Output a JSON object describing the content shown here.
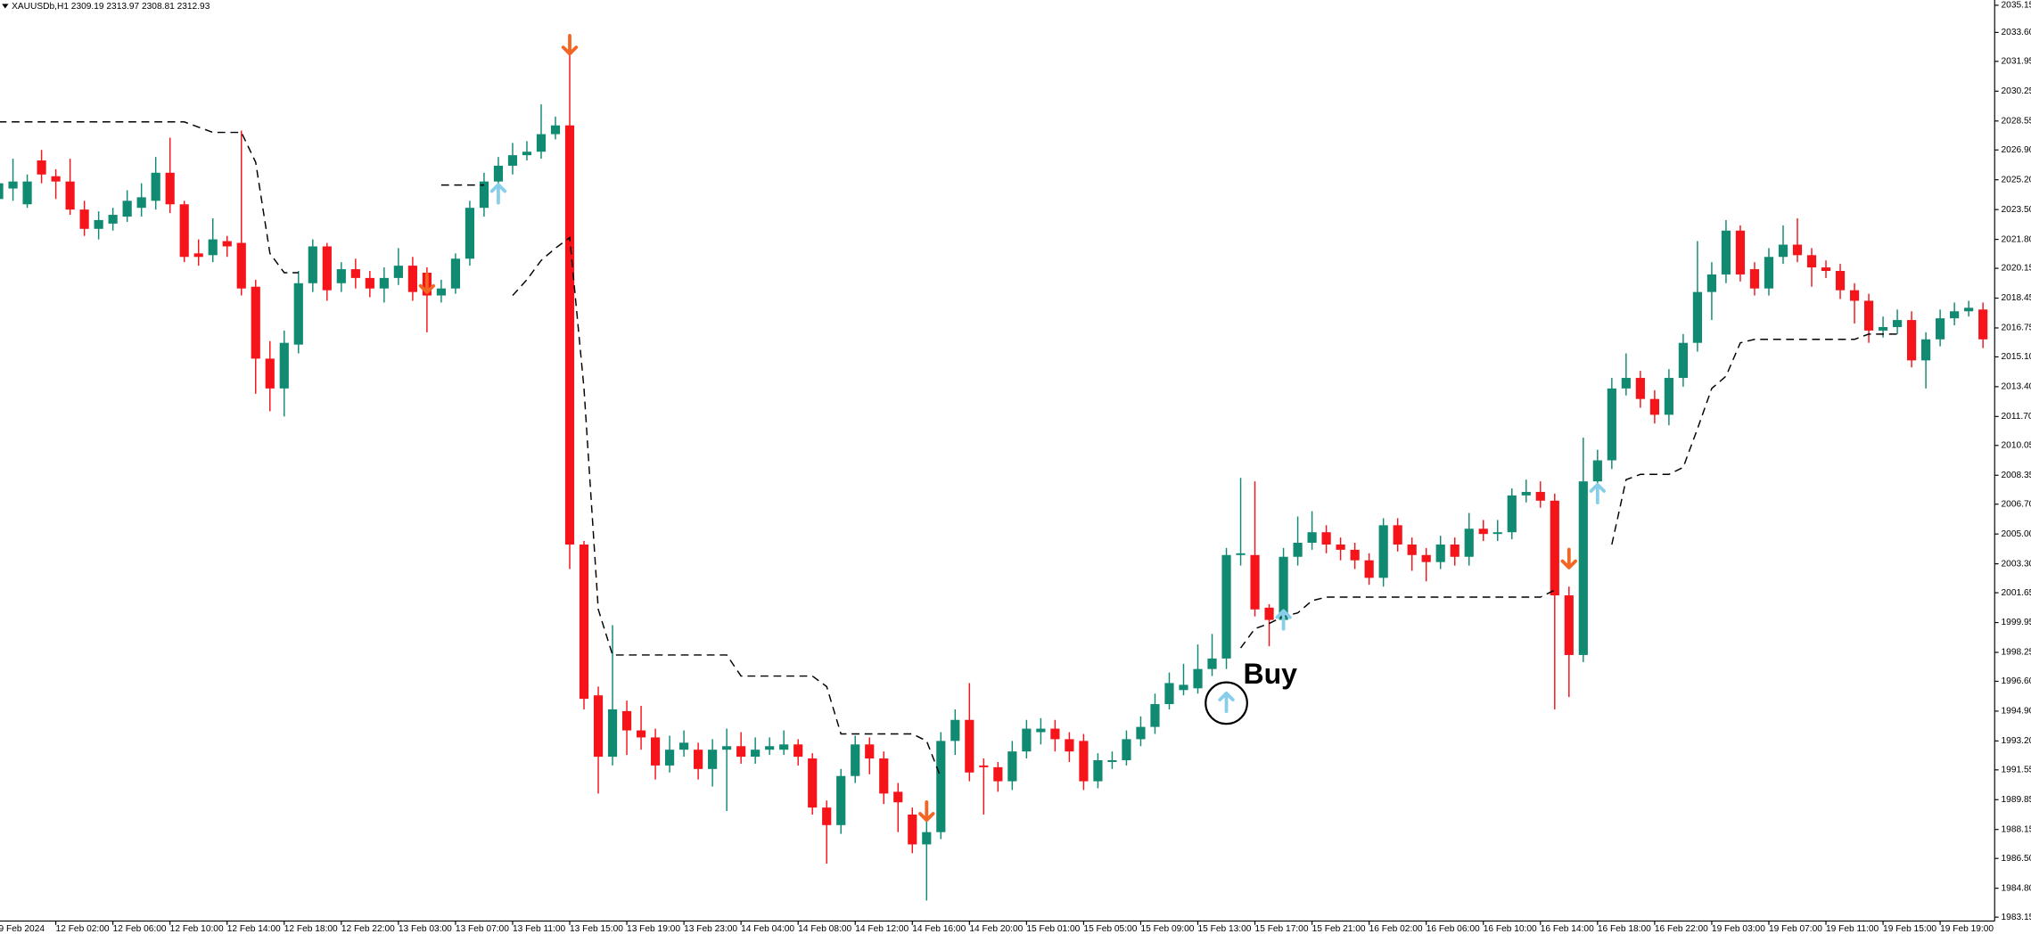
{
  "chart_data": {
    "type": "candlestick",
    "title": "XAUUSDb,H1  2309.19 2313.97 2308.81 2312.93",
    "categories": [
      "9 Feb 2024",
      null,
      null,
      null,
      "12 Feb 02:00",
      null,
      null,
      null,
      "12 Feb 06:00",
      null,
      null,
      null,
      "12 Feb 10:00",
      null,
      null,
      null,
      "12 Feb 14:00",
      null,
      null,
      null,
      "12 Feb 18:00",
      null,
      null,
      null,
      "12 Feb 22:00",
      null,
      null,
      null,
      "13 Feb 03:00",
      null,
      null,
      null,
      "13 Feb 07:00",
      null,
      null,
      null,
      "13 Feb 11:00",
      null,
      null,
      null,
      "13 Feb 15:00",
      null,
      null,
      null,
      "13 Feb 19:00",
      null,
      null,
      null,
      "13 Feb 23:00",
      null,
      null,
      null,
      "14 Feb 04:00",
      null,
      null,
      null,
      "14 Feb 08:00",
      null,
      null,
      null,
      "14 Feb 12:00",
      null,
      null,
      null,
      "14 Feb 16:00",
      null,
      null,
      null,
      "14 Feb 20:00",
      null,
      null,
      null,
      "15 Feb 01:00",
      null,
      null,
      null,
      "15 Feb 05:00",
      null,
      null,
      null,
      "15 Feb 09:00",
      null,
      null,
      null,
      "15 Feb 13:00",
      null,
      null,
      null,
      "15 Feb 17:00",
      null,
      null,
      null,
      "15 Feb 21:00",
      null,
      null,
      null,
      "16 Feb 02:00",
      null,
      null,
      null,
      "16 Feb 06:00",
      null,
      null,
      null,
      "16 Feb 10:00",
      null,
      null,
      null,
      "16 Feb 14:00",
      null,
      null,
      null,
      "16 Feb 18:00",
      null,
      null,
      null,
      "16 Feb 22:00",
      null,
      null,
      null,
      "19 Feb 03:00",
      null,
      null,
      null,
      "19 Feb 07:00",
      null,
      null,
      null,
      "19 Feb 11:00",
      null,
      null,
      null,
      "19 Feb 15:00",
      null,
      null,
      null,
      "19 Feb 19:00",
      null,
      null,
      null
    ],
    "open": [
      2024.1,
      2024.7,
      2023.8,
      2026.3,
      2025.4,
      2025.1,
      2023.5,
      2022.4,
      2022.7,
      2023.1,
      2023.6,
      2024.0,
      2025.6,
      2023.8,
      2021.0,
      2020.9,
      2021.7,
      2021.6,
      2019.1,
      2015.0,
      2013.3,
      2015.8,
      2019.3,
      2021.4,
      2019.3,
      2020.1,
      2019.6,
      2019.0,
      2019.6,
      2020.3,
      2019.9,
      2018.6,
      2019.0,
      2020.7,
      2023.6,
      2025.1,
      2026.0,
      2026.6,
      2026.8,
      2027.8,
      2028.3,
      2004.4,
      1995.8,
      1992.3,
      1994.9,
      1993.8,
      1993.4,
      1991.8,
      1992.7,
      1992.7,
      1991.6,
      1992.7,
      1992.9,
      1992.3,
      1992.7,
      1992.7,
      1993.0,
      1992.2,
      1989.4,
      1988.4,
      1991.2,
      1993.0,
      1992.2,
      1990.3,
      1989.0,
      1987.3,
      1988.0,
      1993.2,
      1994.4,
      1991.8,
      1991.7,
      1990.9,
      1992.6,
      1993.7,
      1993.9,
      1993.3,
      1993.2,
      1990.9,
      1992.0,
      1992.1,
      1993.3,
      1994.0,
      1995.3,
      1996.1,
      1996.2,
      1997.3,
      1997.9,
      2003.8,
      2003.8,
      2000.8,
      2000.1,
      2003.7,
      2004.5,
      2005.1,
      2004.4,
      2004.1,
      2003.5,
      2002.5,
      2005.5,
      2004.4,
      2003.8,
      2003.4,
      2004.4,
      2003.7,
      2005.3,
      2005.0,
      2005.1,
      2007.2,
      2007.4,
      2006.9,
      2001.5,
      1998.1,
      2008.0,
      2009.2,
      2013.3,
      2013.9,
      2012.7,
      2011.8,
      2013.9,
      2015.9,
      2018.8,
      2019.8,
      2022.3,
      2020.1,
      2019.0,
      2020.8,
      2021.5,
      2020.9,
      2020.2,
      2020.0,
      2018.9,
      2018.3,
      2016.6,
      2016.8,
      2017.2,
      2014.9,
      2016.1,
      2017.3,
      2017.7,
      2017.8
    ],
    "high": [
      2025.6,
      2026.4,
      2025.5,
      2026.9,
      2025.8,
      2026.4,
      2024.0,
      2023.4,
      2023.6,
      2024.6,
      2025.0,
      2026.5,
      2027.6,
      2024.0,
      2021.8,
      2023.0,
      2022.0,
      2028.0,
      2019.5,
      2016.0,
      2016.6,
      2020.0,
      2021.8,
      2021.6,
      2020.5,
      2020.7,
      2020.0,
      2020.2,
      2021.3,
      2020.8,
      2020.2,
      2019.5,
      2021.0,
      2024.0,
      2025.6,
      2026.5,
      2027.3,
      2027.4,
      2029.5,
      2028.8,
      2033.5,
      2004.6,
      1996.3,
      1999.8,
      1995.5,
      1995.2,
      1993.9,
      1993.5,
      1993.8,
      1993.1,
      1993.3,
      1993.9,
      1993.7,
      1993.4,
      1993.4,
      1993.8,
      1993.3,
      1992.5,
      1989.8,
      1991.6,
      1993.5,
      1993.4,
      1992.6,
      1990.8,
      1989.4,
      1988.6,
      1993.7,
      1995.0,
      1996.5,
      1992.2,
      1992.0,
      1993.2,
      1994.4,
      1994.5,
      1994.4,
      1993.7,
      1993.6,
      1992.5,
      1992.6,
      1993.8,
      1994.6,
      1995.9,
      1997.1,
      1997.6,
      1998.7,
      1999.3,
      2004.2,
      2008.2,
      2008.0,
      2001.0,
      2004.2,
      2006.0,
      2006.3,
      2005.5,
      2004.8,
      2004.5,
      2003.9,
      2005.9,
      2005.9,
      2004.8,
      2004.2,
      2004.9,
      2004.8,
      2006.2,
      2005.8,
      2005.8,
      2007.6,
      2008.1,
      2008.0,
      2007.3,
      2002.0,
      2010.5,
      2009.8,
      2013.9,
      2015.3,
      2014.3,
      2013.2,
      2014.4,
      2016.4,
      2021.7,
      2020.5,
      2022.9,
      2022.6,
      2020.5,
      2021.3,
      2022.6,
      2023.0,
      2021.3,
      2020.6,
      2020.4,
      2019.3,
      2018.7,
      2017.4,
      2017.8,
      2017.7,
      2016.5,
      2017.8,
      2018.2,
      2018.3,
      2018.2
    ],
    "low": [
      2023.6,
      2024.0,
      2023.6,
      2025.0,
      2024.1,
      2023.2,
      2022.0,
      2021.8,
      2022.3,
      2022.8,
      2023.1,
      2023.5,
      2023.3,
      2020.5,
      2020.3,
      2020.5,
      2020.8,
      2018.6,
      2013.0,
      2012.0,
      2011.7,
      2015.3,
      2018.8,
      2018.3,
      2018.8,
      2019.0,
      2018.5,
      2018.2,
      2019.2,
      2018.3,
      2016.5,
      2018.2,
      2018.7,
      2020.3,
      2023.1,
      2024.8,
      2025.5,
      2026.3,
      2026.4,
      2027.5,
      2003.0,
      1995.0,
      1990.2,
      1991.8,
      1992.4,
      1992.7,
      1991.0,
      1991.4,
      1992.3,
      1991.0,
      1990.6,
      1989.2,
      1991.9,
      1991.9,
      1992.4,
      1992.4,
      1991.8,
      1989.0,
      1986.2,
      1987.9,
      1990.8,
      1991.3,
      1989.6,
      1988.0,
      1986.8,
      1984.1,
      1987.6,
      1992.4,
      1990.9,
      1989.0,
      1990.3,
      1990.4,
      1992.2,
      1993.0,
      1992.6,
      1992.0,
      1990.4,
      1990.5,
      1991.6,
      1991.8,
      1992.9,
      1993.6,
      1995.0,
      1995.8,
      1995.9,
      1996.9,
      1997.3,
      2003.2,
      2000.3,
      1998.6,
      1999.6,
      2003.2,
      2004.1,
      2003.9,
      2003.5,
      2003.0,
      2002.1,
      2002.0,
      2004.0,
      2002.9,
      2002.3,
      2003.0,
      2003.2,
      2003.2,
      2004.6,
      2004.6,
      2004.7,
      2006.8,
      2006.5,
      1995.0,
      1995.7,
      1997.7,
      2007.6,
      2008.7,
      2012.9,
      2012.2,
      2011.3,
      2011.2,
      2013.4,
      2015.4,
      2017.2,
      2019.3,
      2019.4,
      2018.6,
      2018.6,
      2020.4,
      2020.5,
      2019.1,
      2019.6,
      2018.4,
      2017.0,
      2015.9,
      2016.2,
      2016.4,
      2014.5,
      2013.3,
      2015.7,
      2016.9,
      2017.4,
      2015.6
    ],
    "close": [
      2025.0,
      2025.1,
      2025.1,
      2025.5,
      2025.1,
      2023.5,
      2022.4,
      2022.9,
      2023.2,
      2024.0,
      2024.2,
      2025.6,
      2023.8,
      2020.8,
      2020.8,
      2021.8,
      2021.4,
      2019.0,
      2015.0,
      2013.3,
      2015.9,
      2019.3,
      2021.4,
      2018.9,
      2020.1,
      2019.6,
      2019.0,
      2019.6,
      2020.3,
      2018.8,
      2018.6,
      2019.0,
      2020.7,
      2023.6,
      2025.1,
      2026.0,
      2026.6,
      2026.8,
      2027.8,
      2028.3,
      2004.4,
      1995.6,
      1992.3,
      1995.0,
      1993.8,
      1993.4,
      1991.8,
      1992.7,
      1993.1,
      1991.6,
      1992.7,
      1992.9,
      1992.3,
      1992.7,
      1992.9,
      1993.0,
      1992.3,
      1989.4,
      1988.4,
      1991.2,
      1993.0,
      1992.2,
      1990.2,
      1989.7,
      1987.3,
      1988.0,
      1993.2,
      1994.4,
      1991.4,
      1991.7,
      1990.9,
      1992.6,
      1993.9,
      1993.9,
      1993.3,
      1992.6,
      1990.9,
      1992.1,
      1992.1,
      1993.3,
      1994.0,
      1995.3,
      1996.5,
      1996.4,
      1997.3,
      1997.9,
      2003.8,
      2003.9,
      2000.7,
      2000.1,
      2003.7,
      2004.5,
      2005.1,
      2004.4,
      2004.1,
      2003.5,
      2002.5,
      2005.5,
      2004.4,
      2003.8,
      2003.4,
      2004.4,
      2003.7,
      2005.3,
      2005.0,
      2005.1,
      2007.2,
      2007.4,
      2006.9,
      2001.5,
      1998.1,
      2008.0,
      2009.2,
      2013.3,
      2013.9,
      2012.7,
      2011.8,
      2013.9,
      2015.9,
      2018.8,
      2019.8,
      2022.3,
      2019.8,
      2019.0,
      2020.8,
      2021.5,
      2020.9,
      2020.2,
      2020.0,
      2018.9,
      2018.3,
      2016.6,
      2016.8,
      2017.2,
      2014.9,
      2016.1,
      2017.3,
      2017.7,
      2017.9,
      2016.1
    ],
    "up_color": "#118a72",
    "down_color": "#f5141a",
    "lines": [
      {
        "color": "#000000",
        "dashed": true,
        "values": [
          2028.5,
          2028.5,
          2028.5,
          2028.5,
          2028.5,
          2028.5,
          2028.5,
          2028.5,
          2028.5,
          2028.5,
          2028.5,
          2028.5,
          2028.5,
          2028.5,
          2028.2,
          2027.9,
          2027.9,
          2027.9,
          2026.2,
          2021.0,
          2019.9,
          2019.9,
          null,
          null,
          null,
          null,
          null,
          null,
          null,
          null,
          null,
          2024.9,
          2024.9,
          2024.9,
          2024.9,
          null,
          2018.6,
          2019.5,
          2020.6,
          2021.3,
          2021.9,
          2013.3,
          2000.7,
          1998.1,
          1998.1,
          1998.1,
          1998.1,
          1998.1,
          1998.1,
          1998.1,
          1998.1,
          1998.1,
          1996.9,
          1996.9,
          1996.9,
          1996.9,
          1996.9,
          1996.9,
          1996.3,
          1993.6,
          1993.6,
          1993.6,
          1993.6,
          1993.6,
          1993.6,
          1993.2,
          1991.1,
          null,
          null,
          null,
          null,
          null,
          null,
          null,
          null,
          null,
          null,
          null,
          null,
          null,
          null,
          null,
          null,
          null,
          null,
          null,
          null,
          1998.5,
          1999.6,
          1999.9,
          2000.3,
          2000.5,
          2001.2,
          2001.4,
          2001.4,
          2001.4,
          2001.4,
          2001.4,
          2001.4,
          2001.4,
          2001.4,
          2001.4,
          2001.4,
          2001.4,
          2001.4,
          2001.4,
          2001.4,
          2001.4,
          2001.4,
          2001.8,
          null,
          null,
          null,
          2004.4,
          2008.1,
          2008.4,
          2008.4,
          2008.4,
          2008.8,
          2011.0,
          2013.3,
          2014.0,
          2015.9,
          2016.1,
          2016.1,
          2016.1,
          2016.1,
          2016.1,
          2016.1,
          2016.1,
          2016.1,
          2016.4,
          2016.4,
          2016.4,
          null,
          null,
          null,
          null,
          null,
          null
        ]
      }
    ],
    "signals": [
      {
        "color": "#87ceeb",
        "direction": "up",
        "values": [
          null,
          null,
          null,
          null,
          null,
          null,
          null,
          null,
          null,
          null,
          null,
          null,
          null,
          null,
          null,
          null,
          null,
          null,
          null,
          null,
          null,
          null,
          null,
          null,
          null,
          null,
          null,
          null,
          null,
          null,
          null,
          null,
          null,
          null,
          null,
          2024.4,
          null,
          null,
          null,
          null,
          null,
          null,
          null,
          null,
          null,
          null,
          null,
          null,
          null,
          null,
          null,
          null,
          null,
          null,
          null,
          null,
          null,
          null,
          null,
          null,
          null,
          null,
          null,
          null,
          null,
          null,
          null,
          null,
          null,
          null,
          null,
          null,
          null,
          null,
          null,
          null,
          null,
          null,
          null,
          null,
          null,
          null,
          null,
          null,
          null,
          null,
          1995.4,
          null,
          null,
          null,
          2000.1,
          null,
          null,
          null,
          null,
          null,
          null,
          null,
          null,
          null,
          null,
          null,
          null,
          null,
          null,
          null,
          null,
          null,
          null,
          null,
          null,
          null,
          2007.3,
          null,
          null,
          null,
          null,
          null,
          null,
          null,
          null,
          null,
          null,
          null,
          null,
          null,
          null,
          null,
          null,
          null,
          null,
          null,
          null,
          null,
          null,
          null,
          null,
          null,
          null,
          null
        ]
      },
      {
        "color": "#f26522",
        "direction": "down",
        "values": [
          null,
          null,
          null,
          null,
          null,
          null,
          null,
          null,
          null,
          null,
          null,
          null,
          null,
          null,
          null,
          null,
          null,
          null,
          null,
          null,
          null,
          null,
          null,
          null,
          null,
          null,
          null,
          null,
          null,
          null,
          2019.3,
          null,
          null,
          null,
          null,
          null,
          null,
          null,
          null,
          null,
          2032.9,
          null,
          null,
          null,
          null,
          null,
          null,
          null,
          null,
          null,
          null,
          null,
          null,
          null,
          null,
          null,
          null,
          null,
          null,
          null,
          null,
          null,
          null,
          null,
          null,
          1989.2,
          null,
          null,
          null,
          null,
          null,
          null,
          null,
          null,
          null,
          null,
          null,
          null,
          null,
          null,
          null,
          null,
          null,
          null,
          null,
          null,
          null,
          null,
          null,
          null,
          null,
          null,
          null,
          null,
          null,
          null,
          null,
          null,
          null,
          null,
          null,
          null,
          null,
          null,
          null,
          null,
          null,
          null,
          null,
          null,
          2003.6,
          null,
          null,
          null,
          null,
          null,
          null,
          null,
          null,
          null,
          null,
          null,
          null,
          null,
          null,
          null,
          null,
          null,
          null,
          null,
          null,
          null,
          null,
          null,
          null,
          null,
          null,
          null,
          null,
          null
        ]
      }
    ],
    "annotation": "Buy",
    "ylim": [
      1982.93,
      2035.45
    ],
    "yticks": [
      2035.15,
      {
        "value": 2033.6,
        "label": "2033.60"
      },
      2031.95,
      2030.25,
      2028.55,
      {
        "value": 2026.9,
        "label": "2026.90"
      },
      {
        "value": 2025.2,
        "label": "2025.20"
      },
      {
        "value": 2023.5,
        "label": "2023.50"
      },
      {
        "value": 2021.8,
        "label": "2021.80"
      },
      2020.15,
      2018.45,
      2016.75,
      {
        "value": 2015.1,
        "label": "2015.10"
      },
      {
        "value": 2013.4,
        "label": "2013.40"
      },
      {
        "value": 2011.7,
        "label": "2011.70"
      },
      2010.05,
      2008.35,
      {
        "value": 2006.7,
        "label": "2006.70"
      },
      {
        "value": 2005,
        "label": "2005.00"
      },
      {
        "value": 2003.3,
        "label": "2003.30"
      },
      2001.65,
      1999.95,
      1998.25,
      {
        "value": 1996.6,
        "label": "1996.60"
      },
      {
        "value": 1994.9,
        "label": "1994.90"
      },
      {
        "value": 1993.2,
        "label": "1993.20"
      },
      1991.55,
      1989.85,
      1988.15,
      {
        "value": 1986.5,
        "label": "1986.50"
      },
      {
        "value": 1984.8,
        "label": "1984.80"
      },
      1983.15
    ],
    "grid": false
  }
}
